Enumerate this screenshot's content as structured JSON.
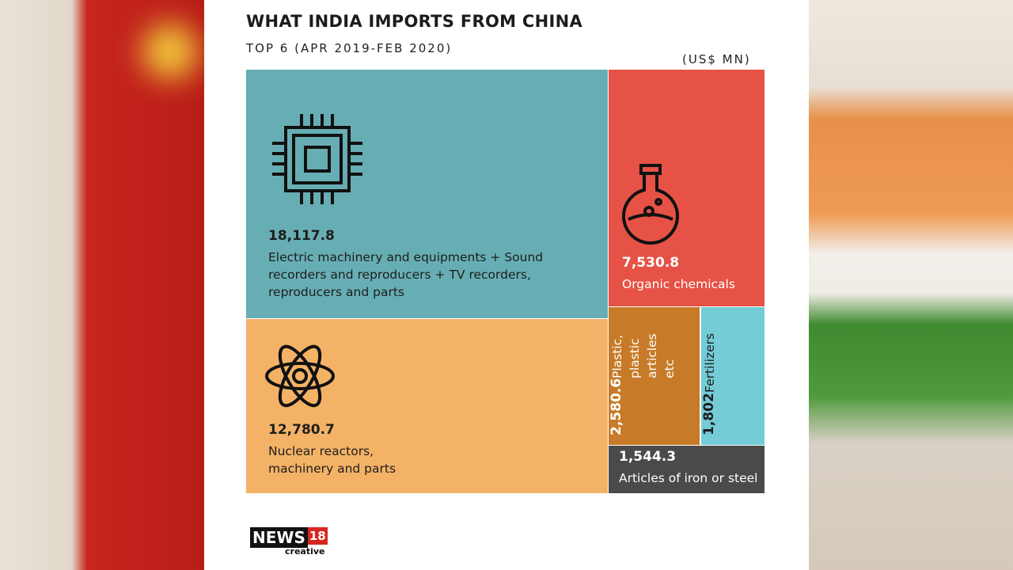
{
  "chart_data": {
    "type": "treemap",
    "title": "WHAT INDIA IMPORTS FROM CHINA",
    "subtitle": "TOP 6 (APR 2019-FEB 2020)",
    "unit": "(US$ MN)",
    "categories": [
      "Electric machinery and equipments + Sound recorders and reproducers + TV recorders, reproducers and parts",
      "Organic chemicals",
      "Nuclear reactors, machinery and parts",
      "Plastic, plastic articles etc",
      "Fertilizers",
      "Articles of iron or steel"
    ],
    "values": [
      18117.8,
      7530.8,
      12780.7,
      2580.6,
      1802,
      1544.3
    ],
    "value_labels": [
      "18,117.8",
      "7,530.8",
      "12,780.7",
      "2,580.6",
      "1,802",
      "1,544.3"
    ],
    "colors": [
      "#67aeb4",
      "#e65245",
      "#f4b266",
      "#c77a27",
      "#74ccd6",
      "#4a4a4a"
    ]
  },
  "branding": {
    "name": "NEWS",
    "number": "18",
    "sub": "creative"
  }
}
